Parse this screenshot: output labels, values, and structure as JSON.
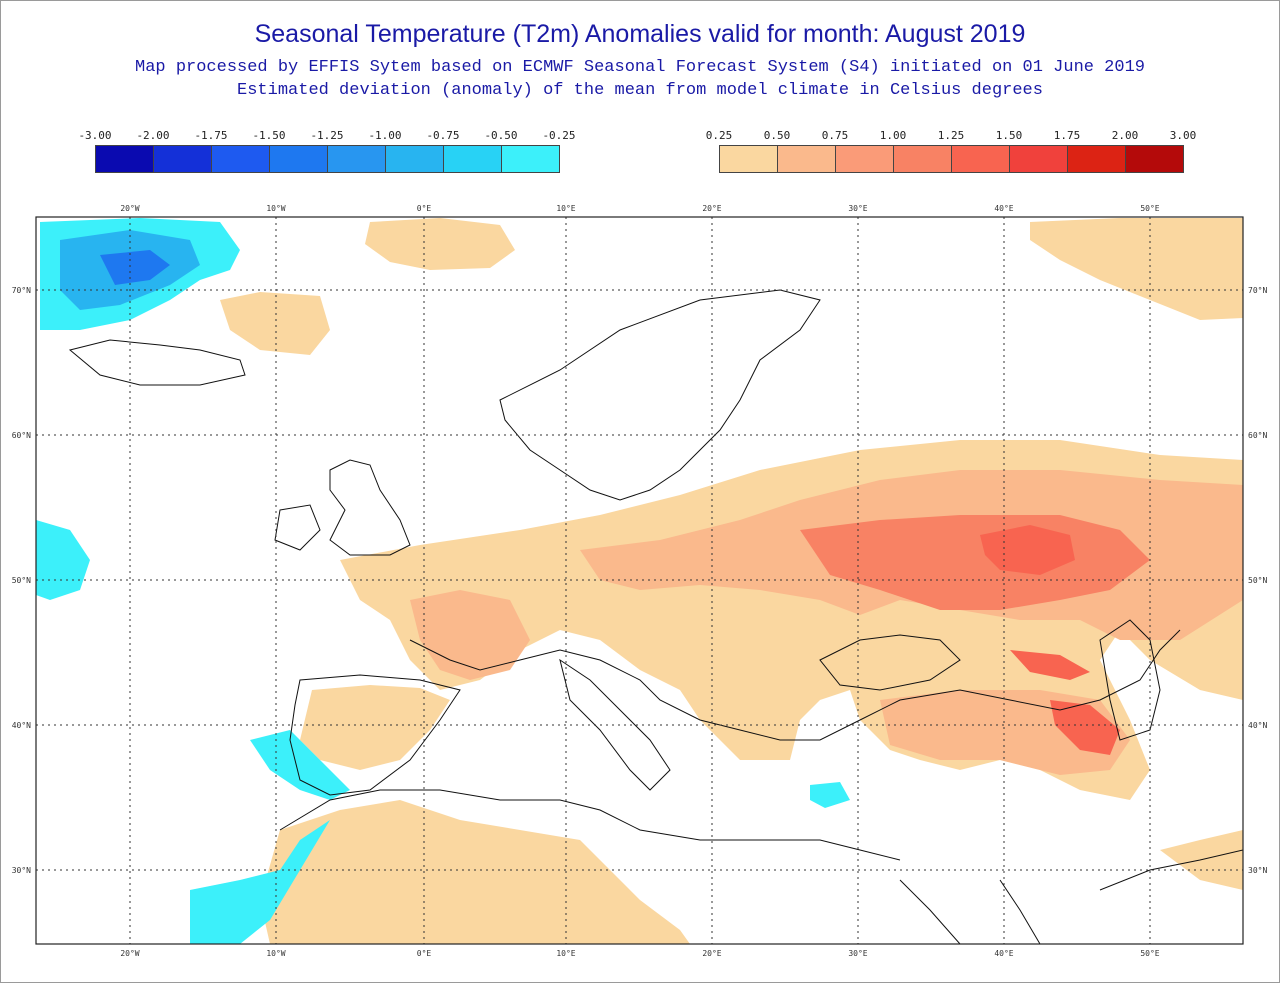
{
  "title": "Seasonal Temperature (T2m) Anomalies valid for month: August 2019",
  "subtitle1": "Map processed by EFFIS Sytem based on ECMWF Seasonal Forecast System (S4) initiated on 01 June 2019",
  "subtitle2": "Estimated deviation (anomaly) of the mean from model climate in Celsius degrees",
  "legend_negative": {
    "labels": [
      "-3.00",
      "-2.00",
      "-1.75",
      "-1.50",
      "-1.25",
      "-1.00",
      "-0.75",
      "-0.50",
      "-0.25"
    ],
    "colors": [
      "#0a0ab0",
      "#1430d8",
      "#1e5af0",
      "#1e78f0",
      "#2896f0",
      "#28b4f0",
      "#28d2f5",
      "#3cf0fa"
    ]
  },
  "legend_positive": {
    "labels": [
      "0.25",
      "0.50",
      "0.75",
      "1.00",
      "1.25",
      "1.50",
      "1.75",
      "2.00",
      "3.00"
    ],
    "colors": [
      "#fad7a0",
      "#fab98c",
      "#fa9b78",
      "#f88264",
      "#f86450",
      "#f0413c",
      "#dc2314",
      "#b40a0a"
    ]
  },
  "map": {
    "lon_labels": [
      "20°W",
      "10°W",
      "0°E",
      "10°E",
      "20°E",
      "30°E",
      "40°E",
      "50°E"
    ],
    "lat_labels": [
      "70°N",
      "60°N",
      "50°N",
      "40°N",
      "30°N"
    ],
    "colors": {
      "land_anom_1": "#fad7a0",
      "land_anom_2": "#fab98c",
      "land_anom_3": "#f88264",
      "land_anom_4": "#f86450",
      "cold_1": "#3cf0fa",
      "cold_2": "#28b4f0",
      "cold_3": "#1e78f0",
      "coast": "#111111",
      "grid": "#333333",
      "contour_grey": "#b4b4b4"
    }
  }
}
